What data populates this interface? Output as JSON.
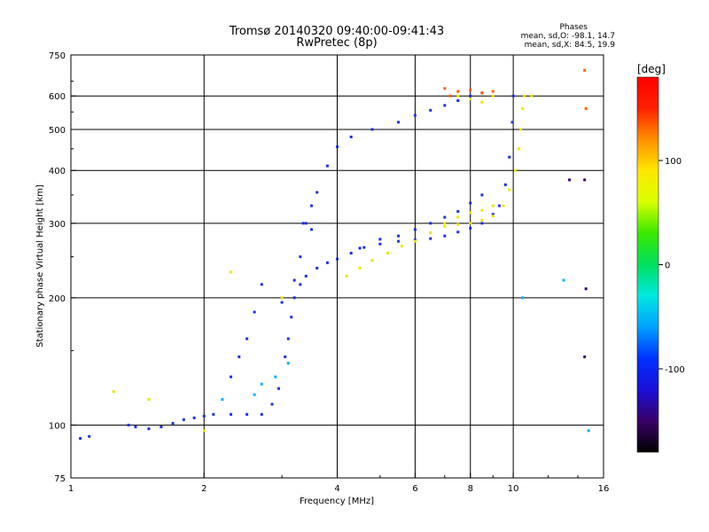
{
  "chart_data": {
    "type": "scatter",
    "title": "Tromsø 20140320 09:40:00-09:41:43",
    "subtitle": "RwPretec (8p)",
    "xlabel": "Frequency [MHz]",
    "ylabel": "Stationary phase Virtual Height [km]",
    "x_scale": "log",
    "y_scale": "log",
    "xlim": [
      1,
      16
    ],
    "ylim": [
      75,
      750
    ],
    "x_ticks": [
      1,
      2,
      4,
      6,
      8,
      10,
      16
    ],
    "x_tick_labels": [
      "1",
      "2",
      "4",
      "6",
      "8",
      "10",
      "16"
    ],
    "y_ticks": [
      75,
      100,
      200,
      300,
      400,
      500,
      600,
      750
    ],
    "y_tick_labels": [
      "75",
      "100",
      "200",
      "300",
      "400",
      "500",
      "600",
      "750"
    ],
    "grid": true,
    "phase_stats": {
      "heading": "Phases",
      "line_o": "mean, sd,O:  -98.1, 14.7",
      "line_x": "mean, sd,X:  84.5, 19.9"
    },
    "colorbar": {
      "label": "[deg]",
      "range": [
        -180,
        180
      ],
      "ticks": [
        100,
        0,
        -100
      ],
      "tick_labels": [
        "100",
        "0",
        "-100"
      ],
      "colors": [
        "#000000",
        "#3a0068",
        "#1a10d8",
        "#0030ff",
        "#00a0ff",
        "#00e8e0",
        "#00e060",
        "#38e800",
        "#d8ff00",
        "#ffe800",
        "#ff9000",
        "#ff2000",
        "#ff0000"
      ]
    },
    "series": [
      {
        "phase": -100,
        "color": "#1f2fe0",
        "points": [
          [
            1.05,
            93
          ],
          [
            1.1,
            94
          ],
          [
            1.35,
            100
          ],
          [
            1.4,
            99
          ],
          [
            1.5,
            98
          ],
          [
            1.6,
            99
          ],
          [
            1.7,
            101
          ],
          [
            1.8,
            103
          ],
          [
            1.9,
            104
          ],
          [
            2.0,
            105
          ],
          [
            2.1,
            106
          ],
          [
            2.3,
            106
          ],
          [
            2.5,
            106
          ],
          [
            2.7,
            106
          ],
          [
            2.85,
            112
          ],
          [
            2.95,
            122
          ],
          [
            3.05,
            145
          ],
          [
            3.1,
            160
          ],
          [
            3.15,
            180
          ],
          [
            3.2,
            200
          ],
          [
            3.3,
            215
          ],
          [
            3.4,
            225
          ],
          [
            3.6,
            235
          ],
          [
            3.8,
            242
          ],
          [
            4.0,
            247
          ],
          [
            4.3,
            255
          ],
          [
            4.6,
            263
          ],
          [
            5.0,
            268
          ],
          [
            5.5,
            272
          ],
          [
            6.0,
            274
          ],
          [
            6.5,
            276
          ],
          [
            7.0,
            280
          ],
          [
            7.5,
            286
          ],
          [
            8.0,
            292
          ],
          [
            8.5,
            300
          ],
          [
            9.0,
            315
          ],
          [
            9.3,
            330
          ],
          [
            9.6,
            370
          ],
          [
            9.8,
            430
          ],
          [
            9.95,
            520
          ],
          [
            10.0,
            600
          ],
          [
            3.4,
            300
          ],
          [
            3.5,
            330
          ],
          [
            3.6,
            355
          ],
          [
            3.8,
            410
          ],
          [
            4.0,
            455
          ],
          [
            4.3,
            480
          ],
          [
            4.8,
            500
          ],
          [
            5.5,
            520
          ],
          [
            6.0,
            540
          ],
          [
            6.5,
            555
          ],
          [
            7.0,
            570
          ],
          [
            7.5,
            585
          ],
          [
            8.0,
            600
          ],
          [
            8.5,
            610
          ],
          [
            4.5,
            262
          ],
          [
            5.0,
            275
          ],
          [
            5.5,
            280
          ],
          [
            6.0,
            290
          ],
          [
            6.5,
            300
          ],
          [
            7.0,
            310
          ],
          [
            7.5,
            320
          ],
          [
            8.0,
            335
          ],
          [
            8.5,
            350
          ],
          [
            3.0,
            195
          ],
          [
            3.2,
            220
          ],
          [
            3.3,
            250
          ],
          [
            3.35,
            300
          ],
          [
            3.5,
            290
          ],
          [
            2.3,
            130
          ],
          [
            2.4,
            145
          ],
          [
            2.5,
            160
          ],
          [
            2.6,
            185
          ],
          [
            2.7,
            215
          ]
        ]
      },
      {
        "phase": 100,
        "color": "#e8e800",
        "points": [
          [
            4.2,
            225
          ],
          [
            4.5,
            235
          ],
          [
            4.8,
            245
          ],
          [
            5.2,
            255
          ],
          [
            5.6,
            265
          ],
          [
            6.0,
            272
          ],
          [
            6.5,
            285
          ],
          [
            7.0,
            295
          ],
          [
            7.5,
            298
          ],
          [
            8.0,
            300
          ],
          [
            8.5,
            305
          ],
          [
            9.0,
            312
          ],
          [
            9.5,
            330
          ],
          [
            9.8,
            360
          ],
          [
            10.1,
            400
          ],
          [
            10.3,
            450
          ],
          [
            10.4,
            500
          ],
          [
            10.5,
            560
          ],
          [
            10.6,
            600
          ],
          [
            7.0,
            300
          ],
          [
            7.5,
            310
          ],
          [
            8.0,
            318
          ],
          [
            8.5,
            322
          ],
          [
            9.0,
            330
          ],
          [
            7.5,
            600
          ],
          [
            8.0,
            590
          ],
          [
            8.5,
            580
          ],
          [
            9.0,
            600
          ],
          [
            1.25,
            120
          ],
          [
            1.5,
            115
          ],
          [
            2.0,
            97
          ],
          [
            2.3,
            230
          ],
          [
            3.0,
            200
          ],
          [
            11,
            600
          ]
        ]
      },
      {
        "phase": 150,
        "color": "#ff6000",
        "points": [
          [
            7.0,
            625
          ],
          [
            7.5,
            615
          ],
          [
            8.0,
            620
          ],
          [
            8.5,
            610
          ],
          [
            7.2,
            600
          ],
          [
            9.0,
            615
          ],
          [
            14.5,
            690
          ],
          [
            14.6,
            560
          ]
        ]
      },
      {
        "phase": -40,
        "color": "#00b0ff",
        "points": [
          [
            2.2,
            115
          ],
          [
            2.6,
            118
          ],
          [
            2.7,
            125
          ],
          [
            2.9,
            130
          ],
          [
            3.1,
            140
          ],
          [
            13,
            220
          ],
          [
            10.5,
            200
          ],
          [
            14.8,
            97
          ]
        ]
      },
      {
        "phase": -150,
        "color": "#3a006a",
        "points": [
          [
            13.4,
            380
          ],
          [
            14.5,
            380
          ],
          [
            14.5,
            145
          ],
          [
            14.6,
            210
          ]
        ]
      }
    ]
  }
}
